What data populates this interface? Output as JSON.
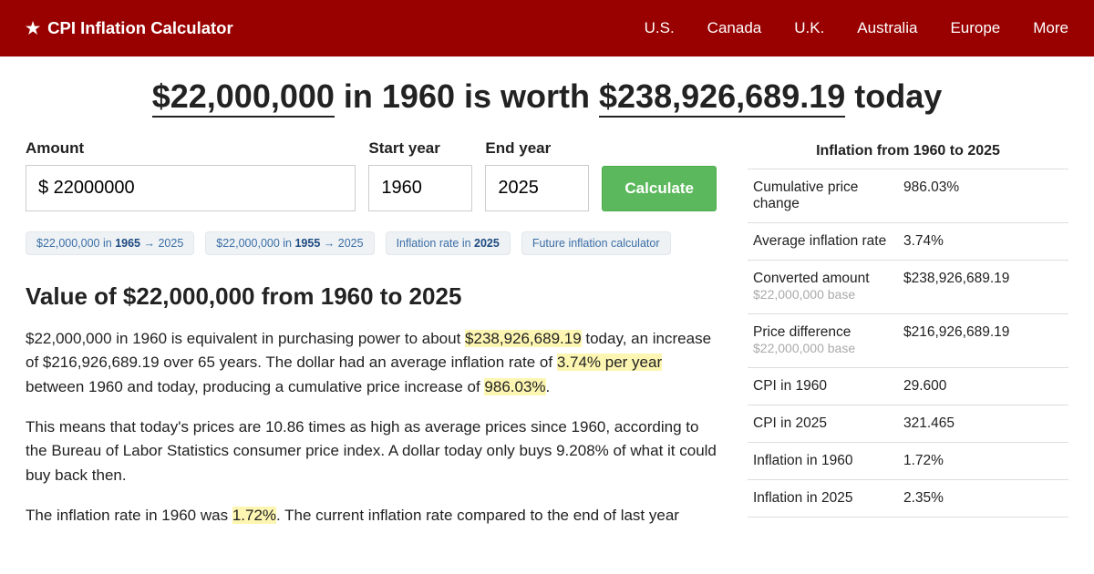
{
  "colors": {
    "header_bg": "#990000",
    "button_bg": "#5cb85c",
    "highlight_bg": "#fdf6b2",
    "chip_bg": "#eef2f5"
  },
  "brand": "CPI Inflation Calculator",
  "nav": [
    "U.S.",
    "Canada",
    "U.K.",
    "Australia",
    "Europe",
    "More"
  ],
  "title": {
    "amount_from": "$22,000,000",
    "mid1": " in 1960 is worth ",
    "amount_to": "$238,926,689.19",
    "mid2": " today"
  },
  "form": {
    "amount_label": "Amount",
    "amount_value": "$ 22000000",
    "start_label": "Start year",
    "start_value": "1960",
    "end_label": "End year",
    "end_value": "2025",
    "button": "Calculate"
  },
  "chips": [
    {
      "pre": "$22,000,000 in ",
      "bold": "1965",
      "post": " → 2025"
    },
    {
      "pre": "$22,000,000 in ",
      "bold": "1955",
      "post": " → 2025"
    },
    {
      "pre": "Inflation rate in ",
      "bold": "2025",
      "post": ""
    },
    {
      "pre": "Future inflation calculator",
      "bold": "",
      "post": ""
    }
  ],
  "section_heading": "Value of $22,000,000 from 1960 to 2025",
  "p1": {
    "a": "$22,000,000 in 1960 is equivalent in purchasing power to about ",
    "hl1": "$238,926,689.19",
    "b": " today, an increase of $216,926,689.19 over 65 years. The dollar had an average inflation rate of ",
    "hl2": "3.74% per year",
    "c": " between 1960 and today, producing a cumulative price increase of ",
    "hl3": "986.03%",
    "d": "."
  },
  "p2": "This means that today's prices are 10.86 times as high as average prices since 1960, according to the Bureau of Labor Statistics consumer price index. A dollar today only buys 9.208% of what it could buy back then.",
  "p3": {
    "a": "The inflation rate in 1960 was ",
    "hl1": "1.72%",
    "b": ". The current inflation rate compared to the end of last year"
  },
  "stats_title": "Inflation from 1960 to 2025",
  "stats": [
    {
      "label": "Cumulative price change",
      "sub": "",
      "val": "986.03%"
    },
    {
      "label": "Average inflation rate",
      "sub": "",
      "val": "3.74%"
    },
    {
      "label": "Converted amount",
      "sub": "$22,000,000 base",
      "val": "$238,926,689.19"
    },
    {
      "label": "Price difference",
      "sub": "$22,000,000 base",
      "val": "$216,926,689.19"
    },
    {
      "label": "CPI in 1960",
      "sub": "",
      "val": "29.600"
    },
    {
      "label": "CPI in 2025",
      "sub": "",
      "val": "321.465"
    },
    {
      "label": "Inflation in 1960",
      "sub": "",
      "val": "1.72%"
    },
    {
      "label": "Inflation in 2025",
      "sub": "",
      "val": "2.35%"
    }
  ]
}
